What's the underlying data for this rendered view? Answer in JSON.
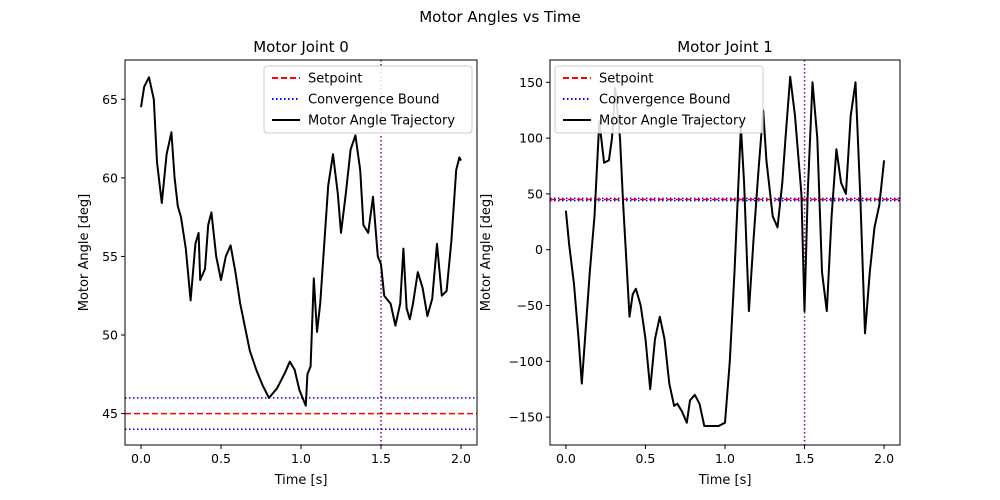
{
  "figure": {
    "suptitle": "Motor Angles vs Time"
  },
  "chart_data": [
    {
      "type": "line",
      "title": "Motor Joint 0",
      "xlabel": "Time [s]",
      "ylabel": "Motor Angle [deg]",
      "xlim": [
        -0.1,
        2.1
      ],
      "ylim": [
        43,
        67.5
      ],
      "xticks": [
        0.0,
        0.5,
        1.0,
        1.5,
        2.0
      ],
      "xtick_labels": [
        "0.0",
        "0.5",
        "1.0",
        "1.5",
        "2.0"
      ],
      "yticks": [
        45,
        50,
        55,
        60,
        65
      ],
      "ytick_labels": [
        "45",
        "50",
        "55",
        "60",
        "65"
      ],
      "grid": false,
      "legend_position": "upper right",
      "setpoint": 45,
      "convergence_bounds": [
        44,
        46
      ],
      "vline_x": 1.5,
      "legend": [
        "Setpoint",
        "Convergence Bound",
        "Motor Angle Trajectory"
      ],
      "series": [
        {
          "name": "Motor Angle Trajectory",
          "x": [
            0.0,
            0.02,
            0.05,
            0.08,
            0.1,
            0.13,
            0.16,
            0.19,
            0.21,
            0.23,
            0.25,
            0.28,
            0.31,
            0.34,
            0.36,
            0.37,
            0.4,
            0.42,
            0.44,
            0.47,
            0.5,
            0.53,
            0.56,
            0.59,
            0.62,
            0.65,
            0.68,
            0.72,
            0.76,
            0.8,
            0.85,
            0.9,
            0.93,
            0.96,
            0.99,
            1.01,
            1.03,
            1.04,
            1.06,
            1.08,
            1.1,
            1.12,
            1.14,
            1.17,
            1.2,
            1.23,
            1.25,
            1.28,
            1.31,
            1.34,
            1.37,
            1.39,
            1.42,
            1.45,
            1.48,
            1.5,
            1.52,
            1.56,
            1.59,
            1.62,
            1.64,
            1.66,
            1.68,
            1.7,
            1.73,
            1.76,
            1.79,
            1.82,
            1.85,
            1.88,
            1.91,
            1.94,
            1.97,
            1.99,
            2.0
          ],
          "y": [
            64.5,
            65.8,
            66.4,
            65.0,
            61.0,
            58.4,
            61.5,
            62.9,
            60.0,
            58.2,
            57.5,
            55.5,
            52.2,
            55.8,
            56.5,
            53.5,
            54.2,
            57.0,
            57.8,
            55.0,
            53.5,
            55.0,
            55.7,
            54.0,
            52.0,
            50.5,
            49.0,
            47.8,
            46.8,
            46.0,
            46.6,
            47.6,
            48.3,
            47.8,
            46.5,
            46.0,
            45.5,
            47.5,
            48.0,
            53.6,
            50.2,
            52.0,
            55.0,
            59.5,
            61.5,
            59.0,
            56.5,
            59.0,
            61.8,
            62.7,
            60.5,
            57.0,
            56.5,
            58.8,
            55.0,
            54.5,
            52.5,
            52.0,
            50.6,
            52.0,
            55.5,
            51.7,
            51.0,
            52.0,
            54.0,
            53.0,
            51.2,
            52.3,
            55.8,
            52.5,
            52.8,
            56.0,
            60.5,
            61.3,
            61.1
          ]
        }
      ]
    },
    {
      "type": "line",
      "title": "Motor Joint 1",
      "xlabel": "Time [s]",
      "ylabel": "Motor Angle [deg]",
      "xlim": [
        -0.1,
        2.1
      ],
      "ylim": [
        -175,
        170
      ],
      "xticks": [
        0.0,
        0.5,
        1.0,
        1.5,
        2.0
      ],
      "xtick_labels": [
        "0.0",
        "0.5",
        "1.0",
        "1.5",
        "2.0"
      ],
      "yticks": [
        -150,
        -100,
        -50,
        0,
        50,
        100,
        150
      ],
      "ytick_labels": [
        "−150",
        "−100",
        "−50",
        "0",
        "50",
        "100",
        "150"
      ],
      "grid": false,
      "legend_position": "upper left",
      "setpoint": 45,
      "convergence_bounds": [
        44,
        46
      ],
      "vline_x": 1.5,
      "legend": [
        "Setpoint",
        "Convergence Bound",
        "Motor Angle Trajectory"
      ],
      "series": [
        {
          "name": "Motor Angle Trajectory",
          "x": [
            0.0,
            0.02,
            0.05,
            0.08,
            0.1,
            0.12,
            0.15,
            0.18,
            0.21,
            0.24,
            0.27,
            0.29,
            0.31,
            0.34,
            0.36,
            0.38,
            0.4,
            0.42,
            0.44,
            0.47,
            0.5,
            0.53,
            0.56,
            0.59,
            0.62,
            0.65,
            0.68,
            0.7,
            0.73,
            0.76,
            0.78,
            0.81,
            0.84,
            0.87,
            0.9,
            0.93,
            0.96,
            1.0,
            1.03,
            1.06,
            1.1,
            1.12,
            1.15,
            1.18,
            1.21,
            1.24,
            1.26,
            1.3,
            1.33,
            1.36,
            1.38,
            1.41,
            1.44,
            1.48,
            1.5,
            1.52,
            1.55,
            1.58,
            1.61,
            1.64,
            1.67,
            1.7,
            1.73,
            1.76,
            1.79,
            1.82,
            1.85,
            1.88,
            1.91,
            1.94,
            1.97,
            2.0
          ],
          "y": [
            35,
            5,
            -30,
            -80,
            -120,
            -80,
            -20,
            30,
            115,
            78,
            80,
            100,
            145,
            100,
            40,
            -10,
            -60,
            -40,
            -35,
            -50,
            -80,
            -125,
            -80,
            -60,
            -80,
            -120,
            -140,
            -138,
            -145,
            -155,
            -135,
            -130,
            -138,
            -158,
            -158,
            -158,
            -158,
            -155,
            -100,
            -20,
            110,
            60,
            -55,
            10,
            70,
            125,
            80,
            30,
            20,
            60,
            100,
            155,
            120,
            50,
            -55,
            50,
            150,
            100,
            -20,
            -55,
            30,
            90,
            60,
            50,
            120,
            150,
            50,
            -75,
            -20,
            20,
            40,
            80
          ]
        }
      ]
    }
  ],
  "colors": {
    "setpoint": "#ff0000",
    "bound": "#0000ff",
    "vline": "#800080",
    "trajectory": "#000000"
  }
}
